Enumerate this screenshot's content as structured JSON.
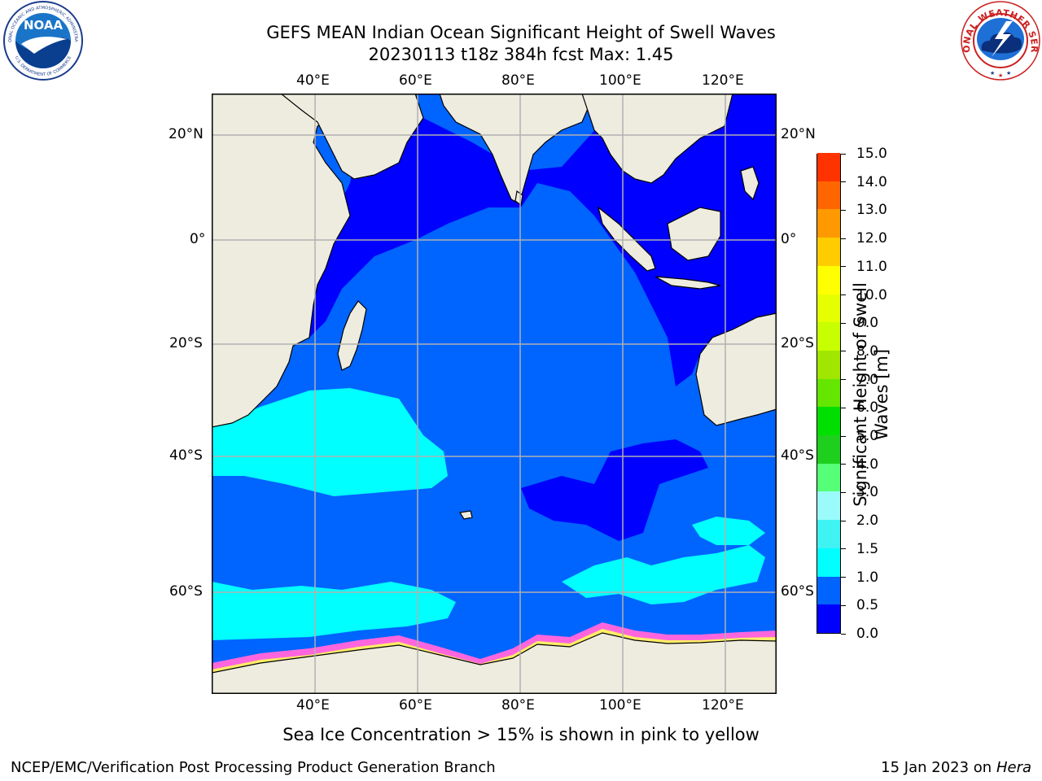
{
  "title": {
    "line1": "GEFS MEAN Indian Ocean Significant Height of Swell Waves",
    "line2": "20230113 t18z 384h fcst   Max: 1.45"
  },
  "map": {
    "lon_ticks": [
      "40°E",
      "60°E",
      "80°E",
      "100°E",
      "120°E"
    ],
    "lat_ticks": [
      "20°N",
      "0°",
      "20°S",
      "40°S",
      "60°S"
    ],
    "colors": {
      "land": "#eeecdf",
      "ocean_low": "#0000ff",
      "ocean_mid": "#0064ff",
      "ocean_high": "#00ffff",
      "ice_pink": "#ff66dd",
      "ice_yellow": "#ffee66",
      "grid": "#b0b0b0"
    }
  },
  "colorbar": {
    "title_line1": "Significant Height of Swell",
    "title_line2": "Waves [m]",
    "ticks": [
      "0.0",
      "0.5",
      "1.0",
      "1.5",
      "2.0",
      "3.0",
      "4.0",
      "5.0",
      "6.0",
      "7.0",
      "8.0",
      "9.0",
      "10.0",
      "11.0",
      "12.0",
      "13.0",
      "14.0",
      "15.0"
    ],
    "colors": [
      "#0000ff",
      "#0064ff",
      "#00ffff",
      "#3ff3f3",
      "#9bfbfb",
      "#55ff77",
      "#1ecf1e",
      "#00e000",
      "#64e600",
      "#a0e600",
      "#c8ff00",
      "#e6ff00",
      "#ffff00",
      "#ffcc00",
      "#ff9900",
      "#ff6600",
      "#ff3300",
      "#ff0000"
    ]
  },
  "note": "Sea Ice Concentration > 15% is shown in pink to yellow",
  "footer": {
    "left": "NCEP/EMC/Verification Post Processing Product Generation Branch",
    "right_prefix": "15 Jan 2023 on ",
    "right_host": "Hera"
  },
  "logos": {
    "noaa_text": "NOAA",
    "noaa_ring": "NATIONAL OCEANIC AND ATMOSPHERIC ADMINISTRATION",
    "noaa_ring_bottom": "U.S. DEPARTMENT OF COMMERCE",
    "nws_ring": "NATIONAL WEATHER SERVICE",
    "noaa_icon": "noaa-logo",
    "nws_icon": "nws-logo"
  }
}
